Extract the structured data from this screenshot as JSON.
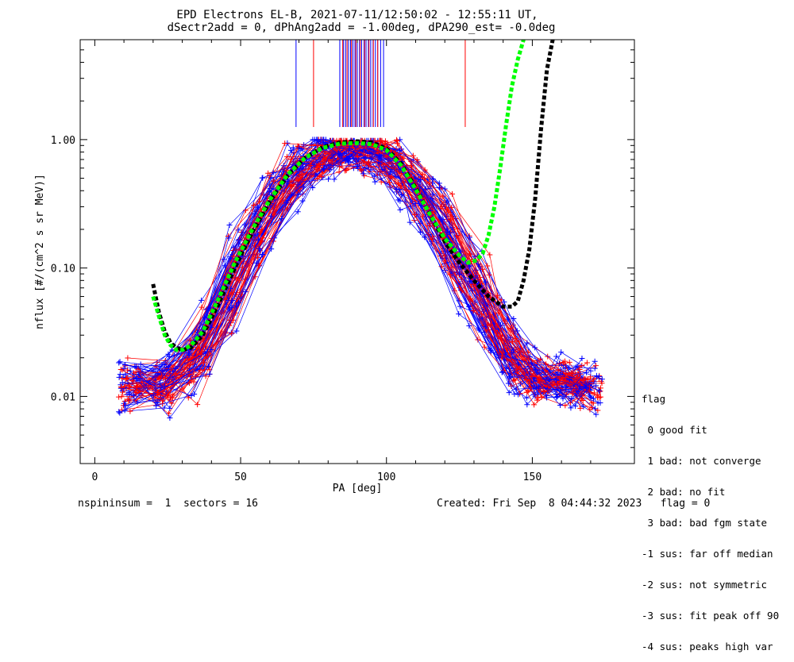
{
  "header": {
    "title": "EPD Electrons EL-B, 2021-07-11/12:50:02 - 12:55:11 UT,",
    "subtitle": "dSectr2add = 0, dPhAng2add = -1.00deg, dPA290_est=  -0.0deg"
  },
  "chart_data": {
    "type": "line",
    "xlabel": "PA [deg]",
    "ylabel": "nflux [#/(cm^2 s sr MeV)]",
    "xlim": [
      -5,
      185
    ],
    "ylim": [
      0.003,
      6
    ],
    "ylog": true,
    "x_ticks": [
      {
        "v": 0,
        "label": "0"
      },
      {
        "v": 50,
        "label": "50"
      },
      {
        "v": 100,
        "label": "100"
      },
      {
        "v": 150,
        "label": "150"
      }
    ],
    "y_ticks": [
      {
        "v": 0.01,
        "label": "0.01"
      },
      {
        "v": 0.1,
        "label": "0.10"
      },
      {
        "v": 1.0,
        "label": "1.00"
      }
    ],
    "colors": {
      "red": "#ff0000",
      "blue": "#0000ff",
      "green": "#00ff00",
      "black": "#000000"
    },
    "series": [
      {
        "color": "black",
        "style": "dashed",
        "x": [
          20,
          22,
          24,
          26,
          28,
          30,
          33,
          37,
          42,
          48,
          54,
          60,
          66,
          72,
          78,
          84,
          90,
          95,
          100,
          105,
          110,
          115,
          120,
          125,
          130,
          135,
          140,
          143,
          145,
          147,
          149,
          151,
          153,
          155,
          157
        ],
        "y": [
          0.075,
          0.045,
          0.032,
          0.026,
          0.024,
          0.023,
          0.024,
          0.03,
          0.05,
          0.1,
          0.19,
          0.33,
          0.52,
          0.72,
          0.87,
          0.95,
          0.97,
          0.95,
          0.85,
          0.65,
          0.42,
          0.26,
          0.16,
          0.11,
          0.08,
          0.06,
          0.05,
          0.05,
          0.055,
          0.08,
          0.14,
          0.35,
          1.2,
          3.5,
          6.0
        ]
      },
      {
        "color": "green",
        "style": "dashed",
        "x": [
          20,
          22,
          24,
          26,
          28,
          30,
          33,
          37,
          42,
          48,
          54,
          60,
          66,
          72,
          78,
          84,
          90,
          95,
          100,
          105,
          110,
          115,
          120,
          125,
          128,
          131,
          133,
          135,
          137,
          139,
          141,
          143,
          145,
          147
        ],
        "y": [
          0.06,
          0.042,
          0.03,
          0.025,
          0.023,
          0.023,
          0.025,
          0.032,
          0.055,
          0.11,
          0.2,
          0.34,
          0.53,
          0.72,
          0.86,
          0.93,
          0.94,
          0.92,
          0.83,
          0.63,
          0.41,
          0.26,
          0.17,
          0.125,
          0.11,
          0.115,
          0.13,
          0.18,
          0.3,
          0.6,
          1.3,
          2.6,
          4.2,
          6.0
        ]
      }
    ],
    "sector_lines": {
      "red": [
        75,
        85,
        86.5,
        88,
        89.5,
        91,
        92.5,
        94,
        95.5,
        97,
        127
      ],
      "blue": [
        69,
        84,
        85.3,
        86,
        87,
        87.7,
        88.5,
        89.2,
        90,
        90.8,
        91.5,
        92.3,
        93,
        93.8,
        94.6,
        95.4,
        96.2,
        97,
        98,
        99
      ]
    }
  },
  "legend": {
    "title": "flag",
    "items": [
      " 0 good fit",
      " 1 bad: not converge",
      " 2 bad: no fit",
      " 3 bad: bad fgm state",
      "-1 sus: far off median",
      "-2 sus: not symmetric",
      "-3 sus: fit peak off 90",
      "-4 sus: peaks high var"
    ]
  },
  "footer": {
    "left": "nspininsum =  1  sectors = 16",
    "right": "Created: Fri Sep  8 04:44:32 2023   flag = 0"
  }
}
